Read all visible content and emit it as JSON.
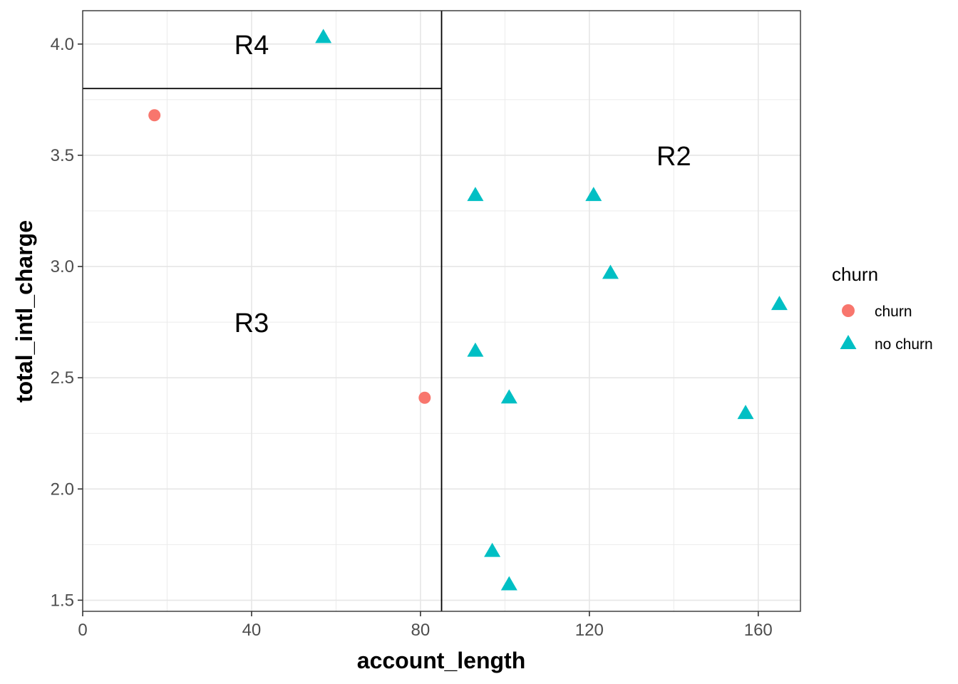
{
  "chart_data": {
    "type": "scatter",
    "title": "",
    "xlabel": "account_length",
    "ylabel": "total_intl_charge",
    "xlim": [
      0,
      170
    ],
    "ylim": [
      1.45,
      4.15
    ],
    "x_ticks": [
      0,
      40,
      80,
      120,
      160
    ],
    "x_tick_labels": [
      "0",
      "40",
      "80",
      "120",
      "160"
    ],
    "y_ticks": [
      1.5,
      2.0,
      2.5,
      3.0,
      3.5,
      4.0
    ],
    "y_tick_labels": [
      "1.5",
      "2.0",
      "2.5",
      "3.0",
      "3.5",
      "4.0"
    ],
    "grid": true,
    "legend": {
      "title": "churn",
      "position": "right",
      "entries": [
        {
          "label": "churn",
          "shape": "circle",
          "color": "#F8766D"
        },
        {
          "label": "no churn",
          "shape": "triangle",
          "color": "#00BFC4"
        }
      ]
    },
    "series": [
      {
        "name": "churn",
        "shape": "circle",
        "color": "#F8766D",
        "points": [
          {
            "x": 17,
            "y": 3.68
          },
          {
            "x": 81,
            "y": 2.41
          }
        ]
      },
      {
        "name": "no churn",
        "shape": "triangle",
        "color": "#00BFC4",
        "points": [
          {
            "x": 57,
            "y": 4.03
          },
          {
            "x": 93,
            "y": 3.32
          },
          {
            "x": 121,
            "y": 3.32
          },
          {
            "x": 125,
            "y": 2.97
          },
          {
            "x": 165,
            "y": 2.83
          },
          {
            "x": 93,
            "y": 2.62
          },
          {
            "x": 101,
            "y": 2.41
          },
          {
            "x": 157,
            "y": 2.34
          },
          {
            "x": 97,
            "y": 1.72
          },
          {
            "x": 101,
            "y": 1.57
          }
        ]
      }
    ],
    "splits": [
      {
        "orientation": "vertical",
        "x": 85,
        "y_from": 1.45,
        "y_to": 4.15
      },
      {
        "orientation": "horizontal",
        "y": 3.8,
        "x_from": 0,
        "x_to": 85
      }
    ],
    "annotations": [
      {
        "text": "R4",
        "x": 40,
        "y": 4.0
      },
      {
        "text": "R3",
        "x": 40,
        "y": 2.75
      },
      {
        "text": "R2",
        "x": 140,
        "y": 3.5
      }
    ]
  }
}
